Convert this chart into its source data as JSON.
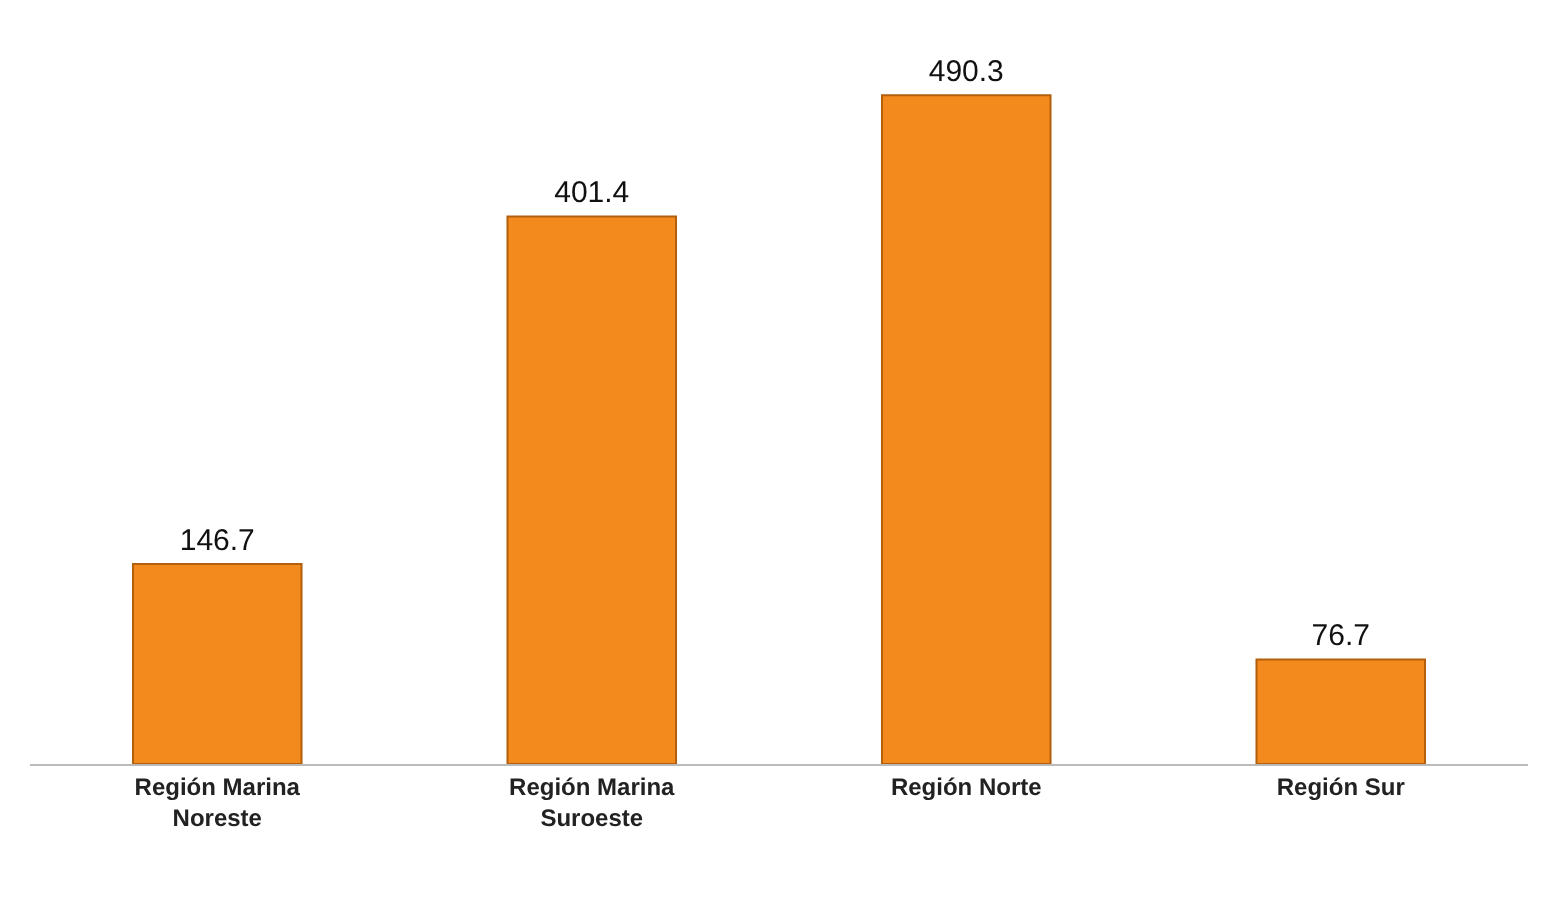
{
  "chart_data": {
    "type": "bar",
    "categories": [
      "Región Marina Noreste",
      "Región Marina Suroeste",
      "Región Norte",
      "Región Sur"
    ],
    "values": [
      146.7,
      401.4,
      490.3,
      76.7
    ],
    "color": "#f28a1e",
    "data_labels": true
  }
}
